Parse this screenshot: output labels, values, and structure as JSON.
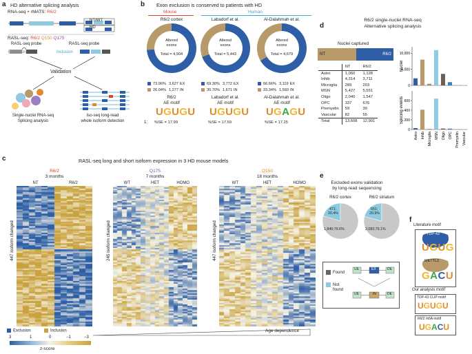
{
  "panel_a": {
    "label": "a",
    "title": "HD alternative splicing analysis",
    "step1": "RNA-seq + rMATS:",
    "step1_model": "R6/2",
    "track_ntwt": "NT/WT",
    "track_hd": "HD",
    "rasl_seq_prefix": "RASL-seq:",
    "rasl_models": [
      "R6/2",
      "Q150",
      "Q175"
    ],
    "probe_label": "RASL-seq probe",
    "probe_label2": "RASL-seq probe",
    "exclusion": "Exclusion",
    "inclusion": "Inclusion",
    "validation": "Validation",
    "left_method": [
      "Single-nuclei RNA-seq",
      "Splicing analysis"
    ],
    "right_method": [
      "Iso-seq long-read",
      "whole isoform detection"
    ]
  },
  "panel_b": {
    "label": "b",
    "title": "Exon exclusion is conserved to patients with HD",
    "mouse_label": "Mouse",
    "human_label": "Human",
    "center_text": [
      "Altered",
      "exons"
    ],
    "ex_label": "EX",
    "in_label": "IN",
    "motif_caption": "AE motif",
    "motif_row_num": "1:",
    "donuts": [
      {
        "name": "R6/2 cortex",
        "total": "Total = 4,904",
        "ex_pct": "73.96%",
        "ex_n": "3,627",
        "in_pct": "26.04%",
        "in_n": "1,277",
        "ex_frac": 0.7396,
        "motif_title": "R6/2",
        "motif_letters": "UGUGU",
        "se": "%SE = 17.99"
      },
      {
        "name": "Labadorf et al.",
        "total": "Total = 5,443",
        "ex_pct": "69.30%",
        "ex_n": "3,772",
        "in_pct": "30.70%",
        "in_n": "1,671",
        "ex_frac": 0.693,
        "motif_title": "Labadorf et al.",
        "motif_letters": "UGUGU",
        "se": "%SE = 17.59"
      },
      {
        "name": "Al-Dalahmah et al.",
        "total": "Total = 4,679",
        "ex_pct": "66.66%",
        "ex_n": "3,119",
        "in_pct": "33.34%",
        "in_n": "1,560",
        "ex_frac": 0.6666,
        "motif_title": "Al-Dalahmah et al.",
        "motif_letters": "UGAGU",
        "se": "%SE = 17.25"
      }
    ]
  },
  "panel_c": {
    "label": "c",
    "title": "RASL-seq long and short isoform expression in 3 HD mouse models",
    "heatmaps": [
      {
        "model": "R6/2",
        "age": "3 months",
        "cols": [
          "NT",
          "R6/2"
        ],
        "ylabel": "447 isoform changed"
      },
      {
        "model": "Q175",
        "age": "7 months",
        "cols": [
          "WT",
          "HET",
          "HOMO"
        ],
        "ylabel": "245 isoform changed"
      },
      {
        "model": "Q150",
        "age": "18 months",
        "cols": [
          "WT",
          "HET",
          "HOMO"
        ],
        "ylabel": "447 isoform changed"
      }
    ],
    "legend_exclusion": "Exclusion",
    "legend_inclusion": "Inclusion",
    "scale_ticks": [
      "3",
      "1",
      "0",
      "−1",
      "−3"
    ],
    "scale_label": "z-score",
    "age_dependence": "Age dependence"
  },
  "panel_d": {
    "label": "d",
    "title": [
      "R6/2 single-nuclei RNA-seq",
      "Alternative splicing analysis"
    ],
    "nuclei_captured": "Nuclei captured",
    "bar_nt": "NT",
    "bar_r62": "R6/2",
    "table_headers": [
      "",
      "NT",
      "R6/2"
    ],
    "table_rows": [
      [
        "Astro",
        "1,060",
        "1,128"
      ],
      [
        "Inhib",
        "4,314",
        "3,711"
      ],
      [
        "Microglia",
        "289",
        "203"
      ],
      [
        "MSN",
        "5,427",
        "5,551"
      ],
      [
        "Oligo",
        "2,040",
        "1,547"
      ],
      [
        "OPC",
        "337",
        "676"
      ],
      [
        "Premyelin",
        "59",
        "30"
      ],
      [
        "Vascular",
        "82",
        "55"
      ]
    ],
    "table_total": [
      "Total",
      "13,608",
      "12,901"
    ]
  },
  "chart_data": [
    {
      "type": "bar",
      "title": "",
      "ylabel": "Nuclei",
      "ylim": [
        0,
        12000
      ],
      "yticks": [
        "0",
        "5,000",
        "10,000"
      ],
      "categories": [
        "Astro",
        "Inhib",
        "Microglia",
        "MSN",
        "Oligo",
        "OPC",
        "Premyelin",
        "Vascular"
      ],
      "values": [
        2188,
        8025,
        492,
        10978,
        3587,
        1013,
        89,
        137
      ]
    },
    {
      "type": "bar",
      "title": "",
      "ylabel": "Splicing events",
      "ylim": [
        0,
        800
      ],
      "yticks": [
        "0",
        "200",
        "400",
        "600"
      ],
      "categories": [
        "Astro",
        "Inhib",
        "Microglia",
        "MSN",
        "Oligo",
        "OPC",
        "Premyelin",
        "Vascular"
      ],
      "values": [
        28,
        410,
        12,
        640,
        20,
        18,
        3,
        4
      ]
    }
  ],
  "panel_e": {
    "label": "e",
    "title": [
      "Excluded exons validation",
      "by long-read sequencing"
    ],
    "pies": [
      {
        "name": "R6/2 cortex",
        "small_label": [
          "471;",
          "20.4%"
        ],
        "big_label": "1,840;79.6%",
        "small_frac": 0.204
      },
      {
        "name": "R6/2 striatum",
        "small_label": [
          "551;",
          "20.9%"
        ],
        "big_label": "2,083;79.1%",
        "small_frac": 0.209
      }
    ],
    "found": "Found",
    "not_found": [
      "Not",
      "found"
    ],
    "ue": "UE",
    "ex": "EX",
    "de": "DE",
    "in": "IN"
  },
  "panel_f": {
    "label": "f",
    "lit_title": "Literature motif",
    "tdp43": "TDP-43",
    "tdp43_letters": "UGUG",
    "mettl3": "METTL3",
    "mettl3_letters": "GACU",
    "our_title": "Our analysis motif",
    "clip_title": "TDP-43 CLIP motif",
    "clip_letters": "UGUGU",
    "m6a_title": "R6/2 m6A motif",
    "m6a_letters": "UGACU"
  },
  "colors": {
    "blue": "#2e5fa6",
    "tan": "#b89a6a",
    "lightblue": "#8ecbe0",
    "red": "#d9452b",
    "purple": "#8a4fa0",
    "orange": "#e08a2b",
    "humanblue": "#3aa6d6"
  }
}
